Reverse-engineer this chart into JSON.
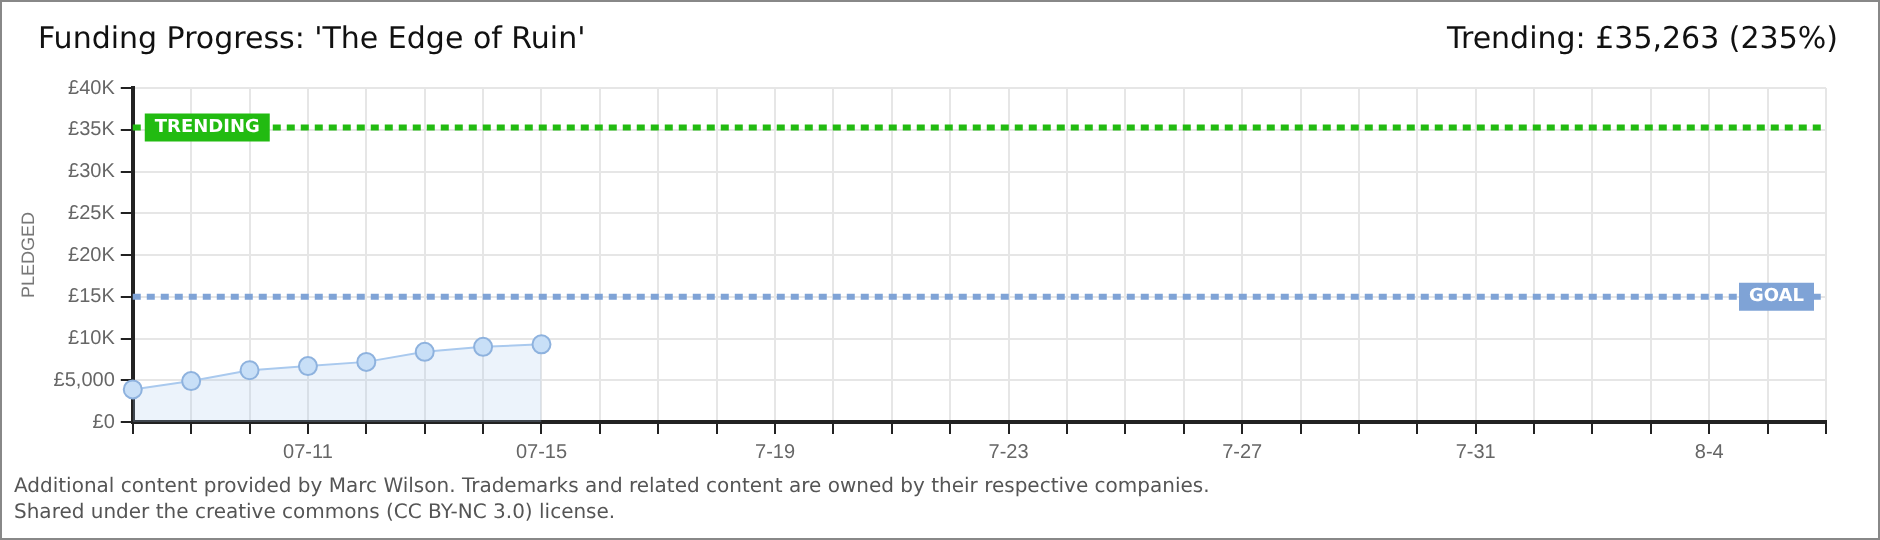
{
  "chart_data": {
    "type": "area",
    "title": "Funding Progress: 'The Edge of Ruin'",
    "subtitle": "Trending: £35,263 (235%)",
    "ylabel": "PLEDGED",
    "categories": [
      null,
      null,
      null,
      "07-11",
      null,
      null,
      null,
      "07-15",
      null,
      null,
      null,
      "7-19",
      null,
      null,
      null,
      "7-23",
      null,
      null,
      null,
      "7-27",
      null,
      null,
      null,
      "7-31",
      null,
      null,
      null,
      "8-4",
      null,
      null
    ],
    "series": [
      {
        "color": "#a9c9ee",
        "values": [
          3900,
          4900,
          6200,
          6700,
          7200,
          8400,
          9000,
          9300,
          null,
          null,
          null,
          null,
          null,
          null,
          null,
          null,
          null,
          null,
          null,
          null,
          null,
          null,
          null,
          null,
          null,
          null,
          null,
          null,
          null,
          null
        ]
      }
    ],
    "ylim": [
      0,
      40000
    ],
    "yticks": [
      {
        "value": 0,
        "label": "£0"
      },
      {
        "value": 5000,
        "label": "£5,000"
      },
      {
        "value": 10000,
        "label": "£10K"
      },
      {
        "value": 15000,
        "label": "£15K"
      },
      {
        "value": 20000,
        "label": "£20K"
      },
      {
        "value": 25000,
        "label": "£25K"
      },
      {
        "value": 30000,
        "label": "£30K"
      },
      {
        "value": 35000,
        "label": "£35K"
      },
      {
        "value": 40000,
        "label": "£40K"
      }
    ],
    "ref_lines": [
      {
        "axis": "y",
        "value": 35263,
        "label": "TRENDING",
        "color": "#22bb11",
        "line_style": "dashed"
      },
      {
        "axis": "y",
        "value": 15000,
        "label": "GOAL",
        "color": "#7fa3d6",
        "line_style": "dashed"
      }
    ],
    "grid": true,
    "legend": false,
    "marker": "circle",
    "annotations": [
      "Additional content provided by Marc Wilson. Trademarks and related content are owned by their respective companies.",
      "Shared under the creative commons (CC BY-NC 3.0) license."
    ]
  }
}
